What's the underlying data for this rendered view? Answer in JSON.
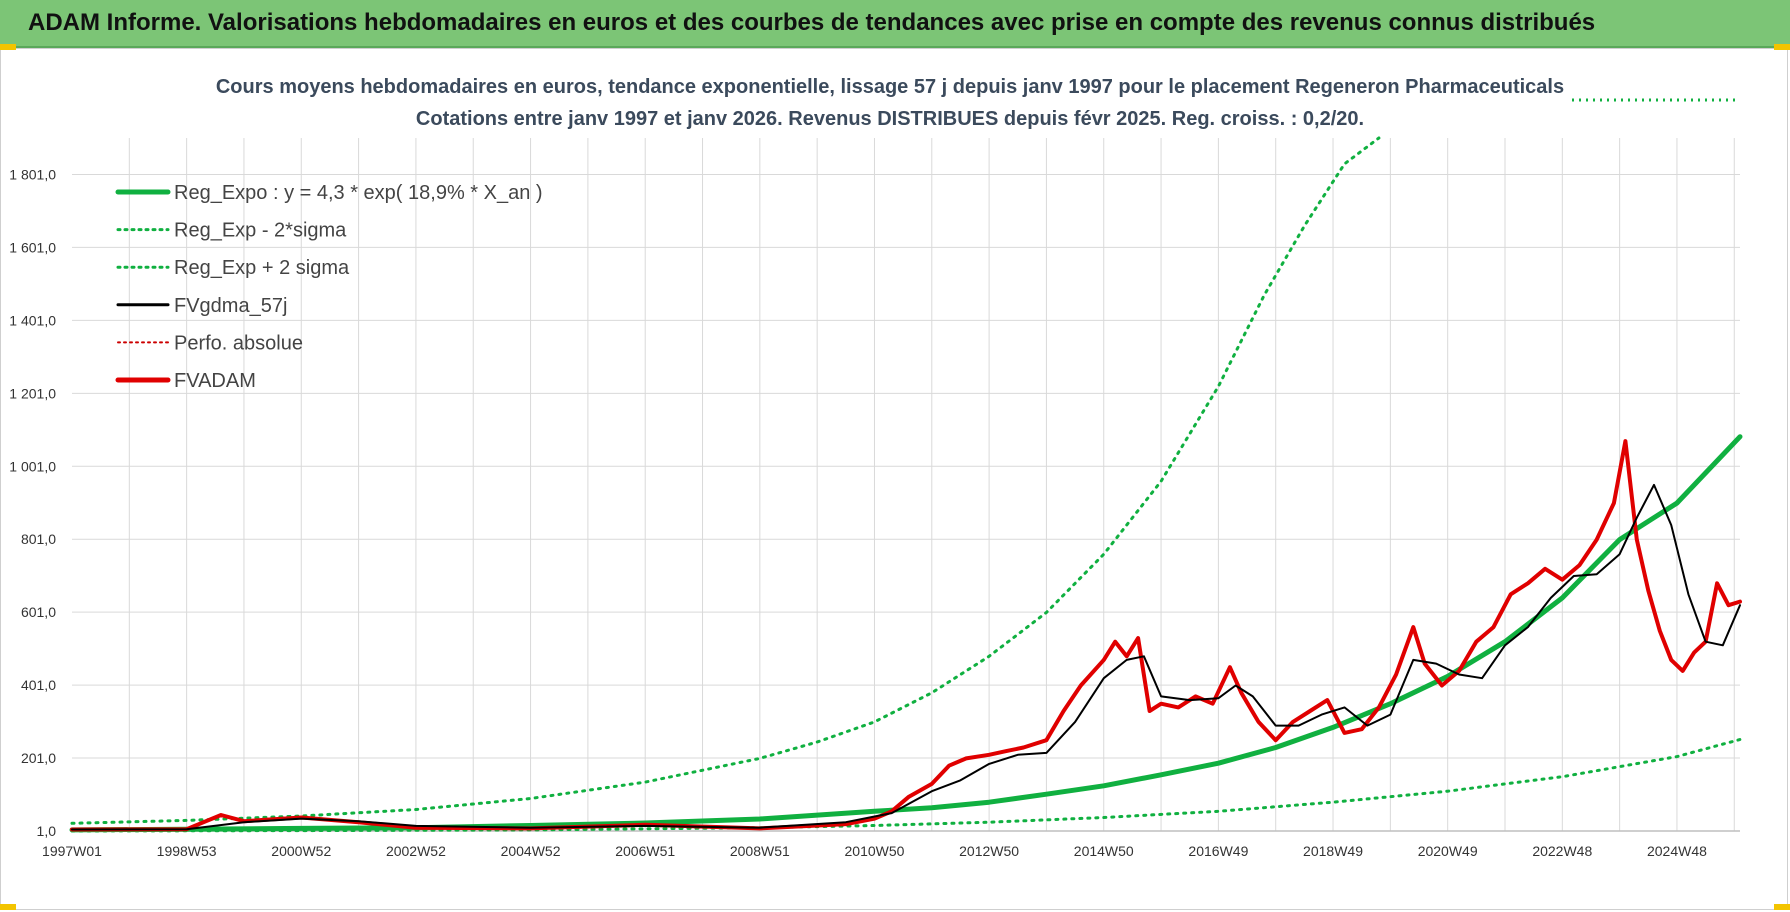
{
  "header": {
    "banner": "ADAM Informe. Valorisations hebdomadaires en euros et des courbes de tendances avec prise en compte des revenus connus distribués"
  },
  "colors": {
    "banner_bg": "#7cc576",
    "reg_expo": "#10b040",
    "sigma": "#10b040",
    "fvgdma": "#000000",
    "perfo": "#cc0000",
    "fvadam": "#e00000",
    "grid": "#d9d9d9"
  },
  "chart_data": {
    "type": "line",
    "title_line1": "Cours moyens hebdomadaires en euros, tendance exponentielle, lissage 57 j depuis janv 1997  pour le placement Regeneron Pharmaceuticals",
    "title_line2": "Cotations entre janv 1997 et janv 2026. Revenus DISTRIBUES depuis févr 2025. Reg. croiss. : 0,2/20.",
    "y_range": [
      1.0,
      1901.0
    ],
    "x_range": [
      1997.0,
      2026.1
    ],
    "y_ticks": [
      "1,0",
      "201,0",
      "401,0",
      "601,0",
      "801,0",
      "1 001,0",
      "1 201,0",
      "1 401,0",
      "1 601,0",
      "1 801,0"
    ],
    "y_tick_values": [
      1,
      201,
      401,
      601,
      801,
      1001,
      1201,
      1401,
      1601,
      1801
    ],
    "x_tick_labels": [
      "1997W01",
      "1998W53",
      "2000W52",
      "2002W52",
      "2004W52",
      "2006W51",
      "2008W51",
      "2010W50",
      "2012W50",
      "2014W50",
      "2016W49",
      "2018W49",
      "2020W49",
      "2022W48",
      "2024W48"
    ],
    "x_tick_years": [
      1997.0,
      1999.0,
      2001.0,
      2003.0,
      2005.0,
      2007.0,
      2009.0,
      2011.0,
      2013.0,
      2015.0,
      2017.0,
      2019.0,
      2021.0,
      2023.0,
      2025.0
    ],
    "grid": true,
    "legend_position": "top-left",
    "legend": [
      {
        "label": "Reg_Expo : y = 4,3 * exp( 18,9% *  X_an )",
        "style": "solid-thick",
        "color": "#10b040"
      },
      {
        "label": "Reg_Exp - 2*sigma",
        "style": "dotted",
        "color": "#10b040"
      },
      {
        "label": "Reg_Exp + 2 sigma",
        "style": "dotted",
        "color": "#10b040"
      },
      {
        "label": "FVgdma_57j",
        "style": "solid",
        "color": "#000000"
      },
      {
        "label": "Perfo. absolue",
        "style": "dotted-thin",
        "color": "#cc0000"
      },
      {
        "label": "FVADAM",
        "style": "solid-thick",
        "color": "#e00000"
      }
    ],
    "series": [
      {
        "name": "Reg_Expo : y = 4,3 * exp( 18,9% *  X_an )",
        "x": [
          1997,
          1999,
          2001,
          2003,
          2005,
          2007,
          2009,
          2011,
          2012,
          2013,
          2014,
          2015,
          2016,
          2017,
          2018,
          2019,
          2020,
          2021,
          2022,
          2023,
          2024,
          2025,
          2026.1
        ],
        "y": [
          4,
          6,
          8,
          10,
          16,
          23,
          34,
          55,
          65,
          80,
          102,
          125,
          155,
          187,
          230,
          285,
          350,
          425,
          520,
          640,
          800,
          900,
          1082
        ]
      },
      {
        "name": "Reg_Exp - 2*sigma",
        "x": [
          1997,
          2001,
          2005,
          2009,
          2011,
          2013,
          2015,
          2017,
          2019,
          2021,
          2023,
          2025,
          2026.1
        ],
        "y": [
          1,
          2,
          4,
          10,
          16,
          25,
          38,
          55,
          80,
          110,
          150,
          205,
          252
        ]
      },
      {
        "name": "Reg_Exp + 2 sigma",
        "x": [
          1997,
          1999,
          2001,
          2003,
          2005,
          2007,
          2009,
          2010,
          2011,
          2012,
          2013,
          2014,
          2015,
          2016,
          2017,
          2017.8,
          2018.5,
          2019.2,
          2019.8
        ],
        "y": [
          22,
          30,
          42,
          60,
          90,
          135,
          200,
          245,
          300,
          380,
          480,
          600,
          760,
          960,
          1220,
          1470,
          1660,
          1830,
          1901
        ]
      },
      {
        "name": "FVgdma_57j",
        "x": [
          1997,
          1999,
          2000,
          2001,
          2002,
          2003,
          2005,
          2007,
          2009,
          2010.5,
          2011.3,
          2012,
          2012.5,
          2013,
          2013.5,
          2014,
          2014.5,
          2015,
          2015.4,
          2015.7,
          2016,
          2016.5,
          2017,
          2017.3,
          2017.6,
          2018,
          2018.4,
          2018.8,
          2019.2,
          2019.6,
          2020,
          2020.4,
          2020.8,
          2021.2,
          2021.6,
          2022,
          2022.4,
          2022.8,
          2023.2,
          2023.6,
          2024,
          2024.3,
          2024.6,
          2024.9,
          2025.2,
          2025.5,
          2025.8,
          2026.1
        ],
        "y": [
          5,
          6,
          25,
          35,
          28,
          15,
          10,
          15,
          10,
          25,
          50,
          110,
          140,
          185,
          210,
          215,
          300,
          420,
          470,
          480,
          370,
          360,
          365,
          400,
          370,
          290,
          290,
          320,
          340,
          290,
          320,
          470,
          460,
          430,
          420,
          510,
          560,
          640,
          700,
          705,
          760,
          860,
          950,
          840,
          650,
          520,
          510,
          620
        ]
      },
      {
        "name": "FVADAM",
        "x": [
          1997,
          1999,
          1999.6,
          2000,
          2001,
          2002,
          2003,
          2005,
          2007,
          2009,
          2010.5,
          2011,
          2011.3,
          2011.6,
          2012,
          2012.3,
          2012.6,
          2013,
          2013.3,
          2013.6,
          2014,
          2014.3,
          2014.6,
          2015,
          2015.2,
          2015.4,
          2015.6,
          2015.8,
          2016,
          2016.3,
          2016.6,
          2016.9,
          2017.2,
          2017.4,
          2017.7,
          2018,
          2018.3,
          2018.6,
          2018.9,
          2019.2,
          2019.5,
          2019.8,
          2020.1,
          2020.4,
          2020.6,
          2020.9,
          2021.2,
          2021.5,
          2021.8,
          2022.1,
          2022.4,
          2022.7,
          2023,
          2023.3,
          2023.6,
          2023.9,
          2024.1,
          2024.3,
          2024.5,
          2024.7,
          2024.9,
          2025.1,
          2025.3,
          2025.5,
          2025.7,
          2025.9,
          2026.1
        ],
        "y": [
          5,
          6,
          45,
          28,
          38,
          25,
          10,
          8,
          18,
          8,
          20,
          35,
          55,
          95,
          130,
          180,
          200,
          210,
          220,
          230,
          250,
          330,
          400,
          470,
          520,
          480,
          530,
          330,
          350,
          340,
          370,
          350,
          450,
          380,
          300,
          250,
          300,
          330,
          360,
          270,
          280,
          340,
          430,
          560,
          460,
          400,
          440,
          520,
          560,
          650,
          680,
          720,
          690,
          730,
          800,
          900,
          1070,
          800,
          660,
          550,
          470,
          440,
          490,
          520,
          680,
          620,
          630
        ]
      }
    ]
  }
}
